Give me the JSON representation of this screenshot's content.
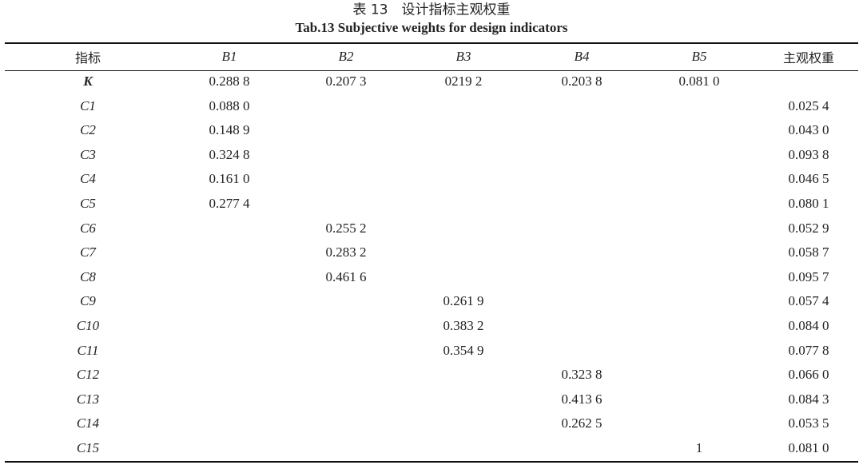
{
  "title_cn": "表 13　设计指标主观权重",
  "title_en": "Tab.13 Subjective weights for design indicators",
  "table": {
    "header": [
      "指标",
      "B1",
      "B2",
      "B3",
      "B4",
      "B5",
      "主观权重"
    ],
    "rows": [
      [
        "K",
        "0.288 8",
        "0.207 3",
        "0219 2",
        "0.203 8",
        "0.081 0",
        null
      ],
      [
        "C1",
        "0.088 0",
        null,
        null,
        null,
        null,
        "0.025 4"
      ],
      [
        "C2",
        "0.148 9",
        null,
        null,
        null,
        null,
        "0.043 0"
      ],
      [
        "C3",
        "0.324 8",
        null,
        null,
        null,
        null,
        "0.093 8"
      ],
      [
        "C4",
        "0.161 0",
        null,
        null,
        null,
        null,
        "0.046 5"
      ],
      [
        "C5",
        "0.277 4",
        null,
        null,
        null,
        null,
        "0.080 1"
      ],
      [
        "C6",
        null,
        "0.255 2",
        null,
        null,
        null,
        "0.052 9"
      ],
      [
        "C7",
        null,
        "0.283 2",
        null,
        null,
        null,
        "0.058 7"
      ],
      [
        "C8",
        null,
        "0.461 6",
        null,
        null,
        null,
        "0.095 7"
      ],
      [
        "C9",
        null,
        null,
        "0.261 9",
        null,
        null,
        "0.057 4"
      ],
      [
        "C10",
        null,
        null,
        "0.383 2",
        null,
        null,
        "0.084 0"
      ],
      [
        "C11",
        null,
        null,
        "0.354 9",
        null,
        null,
        "0.077 8"
      ],
      [
        "C12",
        null,
        null,
        null,
        "0.323 8",
        null,
        "0.066 0"
      ],
      [
        "C13",
        null,
        null,
        null,
        "0.413 6",
        null,
        "0.084 3"
      ],
      [
        "C14",
        null,
        null,
        null,
        "0.262 5",
        null,
        "0.053 5"
      ],
      [
        "C15",
        null,
        null,
        null,
        null,
        "1",
        "0.081 0"
      ]
    ]
  }
}
